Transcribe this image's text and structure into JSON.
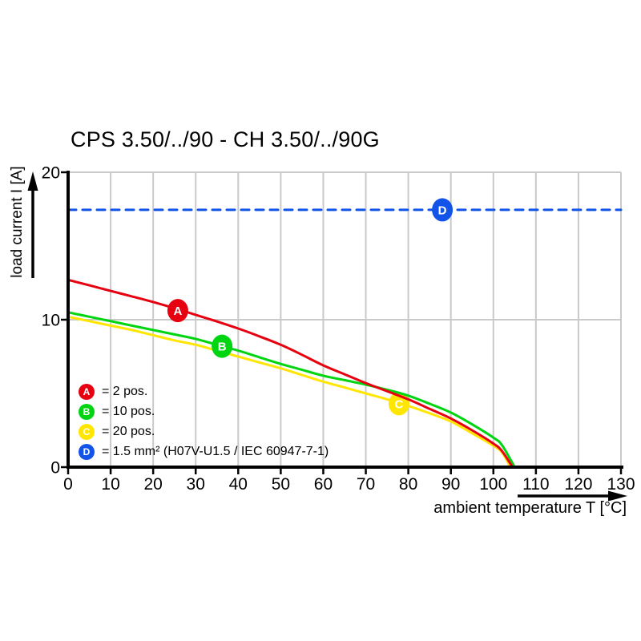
{
  "legend": {
    "items": [
      {
        "key": "A",
        "label": "= 2 pos.",
        "color": "#e60010"
      },
      {
        "key": "B",
        "label": "= 10 pos.",
        "color": "#00d511"
      },
      {
        "key": "C",
        "label": "= 20 pos.",
        "color": "#ffe600"
      },
      {
        "key": "D",
        "label": "= 1.5 mm² (H07V-U1.5 / IEC 60947-7-1)",
        "color": "#1254e8"
      }
    ]
  },
  "chart_data": {
    "type": "line",
    "title": "CPS 3.50/../90 - CH 3.50/../90G",
    "xlabel": "ambient temperature T [°C]",
    "ylabel": "load current I [A]",
    "xlim": [
      0,
      130
    ],
    "ylim": [
      0,
      20
    ],
    "x_ticks": [
      0,
      10,
      20,
      30,
      40,
      50,
      60,
      70,
      80,
      90,
      100,
      110,
      120,
      130
    ],
    "y_ticks": [
      0,
      10,
      20
    ],
    "grid": true,
    "grid_color": "#c9c9c9",
    "axis_color": "#000000",
    "series": [
      {
        "name": "A",
        "label": "2 pos.",
        "color": "#e60010",
        "style": "solid",
        "marker_at": [
          25.8,
          10.62
        ],
        "points": [
          [
            0,
            12.7
          ],
          [
            5,
            12.33
          ],
          [
            10,
            11.95
          ],
          [
            15,
            11.58
          ],
          [
            20,
            11.2
          ],
          [
            25,
            10.78
          ],
          [
            30,
            10.33
          ],
          [
            35,
            9.88
          ],
          [
            40,
            9.4
          ],
          [
            45,
            8.87
          ],
          [
            50,
            8.3
          ],
          [
            55,
            7.62
          ],
          [
            60,
            6.9
          ],
          [
            65,
            6.3
          ],
          [
            70,
            5.7
          ],
          [
            75,
            5.15
          ],
          [
            80,
            4.6
          ],
          [
            85,
            3.95
          ],
          [
            90,
            3.3
          ],
          [
            95,
            2.5
          ],
          [
            100,
            1.6
          ],
          [
            102,
            1.1
          ],
          [
            104.5,
            0
          ]
        ]
      },
      {
        "name": "B",
        "label": "10 pos.",
        "color": "#00d511",
        "style": "solid",
        "marker_at": [
          36.2,
          8.2
        ],
        "points": [
          [
            0,
            10.5
          ],
          [
            5,
            10.2
          ],
          [
            10,
            9.9
          ],
          [
            15,
            9.6
          ],
          [
            20,
            9.3
          ],
          [
            25,
            9.0
          ],
          [
            30,
            8.7
          ],
          [
            35,
            8.3
          ],
          [
            40,
            7.9
          ],
          [
            45,
            7.45
          ],
          [
            50,
            7.0
          ],
          [
            55,
            6.6
          ],
          [
            60,
            6.2
          ],
          [
            65,
            5.9
          ],
          [
            70,
            5.6
          ],
          [
            75,
            5.25
          ],
          [
            80,
            4.85
          ],
          [
            85,
            4.3
          ],
          [
            90,
            3.7
          ],
          [
            95,
            2.9
          ],
          [
            100,
            2.0
          ],
          [
            102,
            1.5
          ],
          [
            105,
            0
          ]
        ]
      },
      {
        "name": "C",
        "label": "20 pos.",
        "color": "#ffe600",
        "style": "solid",
        "marker_at": [
          77.8,
          4.3
        ],
        "points": [
          [
            0,
            10.2
          ],
          [
            5,
            9.9
          ],
          [
            10,
            9.6
          ],
          [
            15,
            9.3
          ],
          [
            20,
            8.95
          ],
          [
            25,
            8.6
          ],
          [
            30,
            8.3
          ],
          [
            35,
            7.9
          ],
          [
            40,
            7.5
          ],
          [
            45,
            7.1
          ],
          [
            50,
            6.7
          ],
          [
            55,
            6.25
          ],
          [
            60,
            5.8
          ],
          [
            65,
            5.4
          ],
          [
            70,
            5.0
          ],
          [
            75,
            4.6
          ],
          [
            80,
            4.15
          ],
          [
            85,
            3.65
          ],
          [
            90,
            3.1
          ],
          [
            95,
            2.3
          ],
          [
            100,
            1.45
          ],
          [
            102,
            1.0
          ],
          [
            104,
            0
          ]
        ]
      },
      {
        "name": "D",
        "label": "1.5 mm² (H07V-U1.5 / IEC 60947-7-1)",
        "color": "#1254e8",
        "style": "dashed",
        "marker_at": [
          88,
          17.45
        ],
        "points": [
          [
            0,
            17.45
          ],
          [
            130,
            17.45
          ]
        ]
      }
    ]
  }
}
